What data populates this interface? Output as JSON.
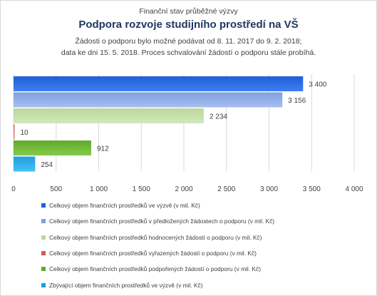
{
  "chart_data": {
    "type": "bar",
    "orientation": "horizontal",
    "pretitle": "Finanční stav průběžné výzvy",
    "title": "Podpora rozvoje studijního prostředí na VŠ",
    "subtitle_lines": [
      "Žádosti o podporu bylo možné  podávat od 8. 11. 2017 do 9. 2. 2018;",
      "data ke dni 15. 5. 2018. Proces schvalování žádostí o podporu stále probíhá."
    ],
    "xlim": [
      0,
      4000
    ],
    "xticks": [
      0,
      500,
      1000,
      1500,
      2000,
      2500,
      3000,
      3500,
      4000
    ],
    "xtick_labels": [
      "0",
      "500",
      "1 000",
      "1 500",
      "2 000",
      "2 500",
      "3 000",
      "3 500",
      "4 000"
    ],
    "grid": true,
    "legend_position": "bottom",
    "series": [
      {
        "name": "Celkový objem finančních prostředků ve výzvě (v mil. Kč)",
        "value": 3400,
        "label": "3 400",
        "color": "#1f5fd8",
        "color2": "#3f7ff0"
      },
      {
        "name": "Celkový objem finančních prostředků v předložených žádostech o podporu (v mil. Kč)",
        "value": 3156,
        "label": "3 156",
        "color": "#7f9fdf",
        "color2": "#a7bfef"
      },
      {
        "name": "Celkový objem finančních prostředků hodnocených žádostí o podporu (v mil. Kč)",
        "value": 2234,
        "label": "2 234",
        "color": "#b9d89a",
        "color2": "#d3e8bd"
      },
      {
        "name": "Celkový objem finančních prostředků vyřazených žádostí o podporu (v mil. Kč)",
        "value": 10,
        "label": "10",
        "color": "#d35b5b",
        "color2": "#e98a8a"
      },
      {
        "name": "Celkový objem finančních prostředků podpořených žádostí o podporu (v mil. Kč)",
        "value": 912,
        "label": "912",
        "color": "#5faa2a",
        "color2": "#86c94a"
      },
      {
        "name": "Zbývající objem finančních prostředků ve výzvě (v mil. Kč)",
        "value": 254,
        "label": "254",
        "color": "#1f9fe0",
        "color2": "#49c0f5"
      }
    ]
  }
}
